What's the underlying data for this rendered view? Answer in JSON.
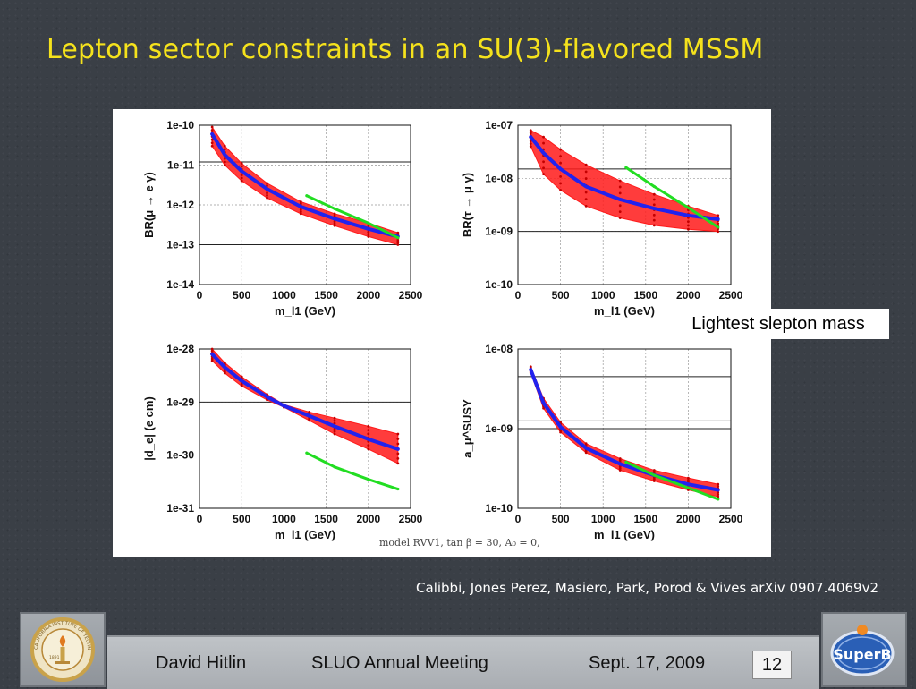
{
  "slide": {
    "title": "Lepton sector constraints in an SU(3)-flavored MSSM",
    "callout": "Lightest slepton mass",
    "citation": "Calibbi, Jones Perez, Masiero, Park, Porod & Vives arXiv 0907.4069v2",
    "model_caption": "model RVV1, tan β = 30, A₀ = 0,"
  },
  "footer": {
    "author": "David Hitlin",
    "meeting": "SLUO Annual Meeting",
    "date": "Sept. 17, 2009",
    "page": "12"
  },
  "logos": {
    "left": "caltech-seal",
    "left_text": "CALIFORNIA INSTITUTE OF TECHNOLOGY",
    "left_year": "1891",
    "right": "superb-logo",
    "right_text": "SuperB"
  },
  "colors": {
    "title": "#f5e21c",
    "scan_red": "#ff1a1a",
    "central_blue": "#2222ee",
    "alt_green": "#22dd22",
    "limit_line": "#222222"
  },
  "chart_data": [
    {
      "type": "scatter",
      "id": "br-mu-e-gamma",
      "xlabel": "m_l1 (GeV)",
      "ylabel": "BR(μ → e γ)",
      "xlim": [
        0,
        2500
      ],
      "ylim": [
        1e-14,
        1e-10
      ],
      "log_y": true,
      "x_ticks": [
        "0",
        "500",
        "1000",
        "1500",
        "2000",
        "2500"
      ],
      "y_ticks": [
        "1e-14",
        "1e-13",
        "1e-12",
        "1e-11",
        "1e-10"
      ],
      "limit_lines": [
        1.2e-11,
        1e-13
      ],
      "series": [
        {
          "color": "red",
          "x": [
            150,
            300,
            500,
            800,
            1200,
            1600,
            2000,
            2350
          ],
          "y_low": [
            3e-11,
            1e-11,
            4e-12,
            1.5e-12,
            6e-13,
            3e-13,
            1.6e-13,
            1e-13
          ],
          "y_high": [
            9e-11,
            3e-11,
            1.1e-11,
            3.5e-12,
            1.2e-12,
            6e-13,
            3.5e-13,
            2e-13
          ]
        },
        {
          "color": "blue",
          "x": [
            150,
            300,
            500,
            800,
            1200,
            1600,
            2000,
            2350
          ],
          "y": [
            6e-11,
            1.8e-11,
            7e-12,
            2.5e-12,
            9e-13,
            4.5e-13,
            2.5e-13,
            1.6e-13
          ]
        },
        {
          "color": "green",
          "x": [
            1270,
            1600,
            2000,
            2350
          ],
          "y": [
            1.7e-12,
            8e-13,
            3.5e-13,
            1.5e-13
          ]
        }
      ]
    },
    {
      "type": "scatter",
      "id": "br-tau-mu-gamma",
      "xlabel": "m_l1 (GeV)",
      "ylabel": "BR(τ → μ γ)",
      "xlim": [
        0,
        2500
      ],
      "ylim": [
        1e-10,
        1e-07
      ],
      "log_y": true,
      "x_ticks": [
        "0",
        "500",
        "1000",
        "1500",
        "2000",
        "2500"
      ],
      "y_ticks": [
        "1e-10",
        "1e-09",
        "1e-08",
        "1e-07"
      ],
      "limit_lines": [
        1.5e-08,
        1e-09
      ],
      "series": [
        {
          "color": "red",
          "x": [
            150,
            300,
            500,
            800,
            1200,
            1600,
            2000,
            2350
          ],
          "y_low": [
            4e-08,
            1.2e-08,
            6e-09,
            3e-09,
            1.8e-09,
            1.3e-09,
            1.1e-09,
            1e-09
          ],
          "y_high": [
            8e-08,
            6e-08,
            3.5e-08,
            1.8e-08,
            9e-09,
            5e-09,
            3e-09,
            2e-09
          ]
        },
        {
          "color": "blue",
          "x": [
            150,
            300,
            500,
            800,
            1200,
            1600,
            2000,
            2350
          ],
          "y": [
            6e-08,
            3e-08,
            1.5e-08,
            7e-09,
            4e-09,
            2.7e-09,
            2e-09,
            1.7e-09
          ]
        },
        {
          "color": "green",
          "x": [
            1270,
            1600,
            2000,
            2350
          ],
          "y": [
            1.6e-08,
            7e-09,
            2.8e-09,
            1.2e-09
          ]
        }
      ]
    },
    {
      "type": "scatter",
      "id": "edm-electron",
      "xlabel": "m_l1 (GeV)",
      "ylabel": "|d_e| (e cm)",
      "xlim": [
        0,
        2500
      ],
      "ylim": [
        1e-31,
        1e-28
      ],
      "log_y": true,
      "x_ticks": [
        "0",
        "500",
        "1000",
        "1500",
        "2000",
        "2500"
      ],
      "y_ticks": [
        "1e-31",
        "1e-30",
        "1e-29",
        "1e-28"
      ],
      "limit_lines": [
        1e-29
      ],
      "series": [
        {
          "color": "red",
          "x": [
            150,
            300,
            500,
            800,
            1000,
            1300,
            1600,
            2000,
            2350
          ],
          "y_low": [
            6e-29,
            3.5e-29,
            2e-29,
            1.1e-29,
            8e-30,
            4.5e-30,
            2.5e-30,
            1.3e-30,
            7e-31
          ],
          "y_high": [
            1e-28,
            5.5e-29,
            3e-29,
            1.4e-29,
            9e-30,
            6.5e-30,
            5e-30,
            3.5e-30,
            2.5e-30
          ]
        },
        {
          "color": "blue",
          "x": [
            150,
            300,
            500,
            800,
            1000,
            1300,
            1600,
            2000,
            2350
          ],
          "y": [
            8e-29,
            4.5e-29,
            2.5e-29,
            1.25e-29,
            8.5e-30,
            5.5e-30,
            3.5e-30,
            2e-30,
            1.3e-30
          ]
        },
        {
          "color": "green",
          "x": [
            1270,
            1600,
            2000,
            2350
          ],
          "y": [
            1.1e-30,
            6e-31,
            3.5e-31,
            2.3e-31
          ]
        }
      ]
    },
    {
      "type": "scatter",
      "id": "muon-g2",
      "xlabel": "m_l1 (GeV)",
      "ylabel": "a_μ^SUSY",
      "xlim": [
        0,
        2500
      ],
      "ylim": [
        1e-10,
        1e-08
      ],
      "log_y": true,
      "x_ticks": [
        "0",
        "500",
        "1000",
        "1500",
        "2000",
        "2500"
      ],
      "y_ticks": [
        "1e-10",
        "1e-09",
        "1e-08"
      ],
      "limit_lines": [
        4.5e-09,
        1.25e-09,
        1e-09
      ],
      "series": [
        {
          "color": "red",
          "x": [
            150,
            300,
            500,
            800,
            1200,
            1600,
            2000,
            2350
          ],
          "y_low": [
            5e-09,
            1.8e-09,
            9e-10,
            5e-10,
            3e-10,
            2.2e-10,
            1.7e-10,
            1.4e-10
          ],
          "y_high": [
            6e-09,
            2.4e-09,
            1.2e-09,
            6.5e-10,
            4.2e-10,
            3e-10,
            2.4e-10,
            2e-10
          ]
        },
        {
          "color": "blue",
          "x": [
            150,
            300,
            500,
            800,
            1200,
            1600,
            2000,
            2350
          ],
          "y": [
            5.5e-09,
            2.1e-09,
            1.05e-09,
            5.7e-10,
            3.6e-10,
            2.6e-10,
            2e-10,
            1.7e-10
          ]
        },
        {
          "color": "green",
          "x": [
            1270,
            1600,
            2000,
            2350
          ],
          "y": [
            3.8e-10,
            2.6e-10,
            1.8e-10,
            1.3e-10
          ]
        }
      ]
    }
  ]
}
